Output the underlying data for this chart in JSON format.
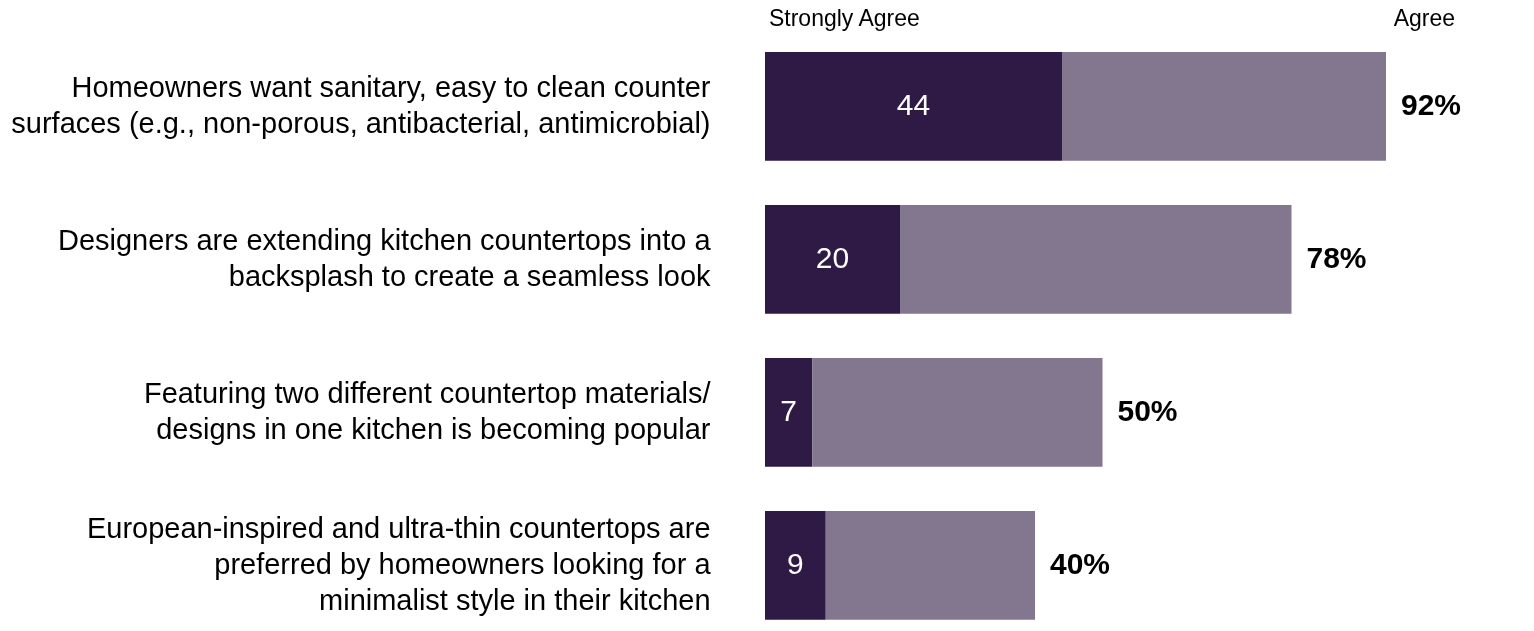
{
  "chart_data": {
    "type": "bar",
    "orientation": "horizontal",
    "stacked": true,
    "categories": [
      "Homeowners want sanitary, easy to clean counter\nsurfaces (e.g., non-porous, antibacterial, antimicrobial)",
      "Designers are extending kitchen countertops into a\nbacksplash to create a seamless look",
      "Featuring two different countertop materials/\ndesigns in one kitchen is becoming popular",
      "European-inspired and ultra-thin countertops are\npreferred by homeowners looking for a\nminimalist style in their kitchen"
    ],
    "series": [
      {
        "name": "Strongly Agree",
        "color": "#2f1a45",
        "values": [
          44,
          20,
          7,
          9
        ],
        "value_labels": [
          "44",
          "20",
          "7",
          "9"
        ]
      },
      {
        "name": "Agree",
        "color": "#83768f",
        "values": [
          48,
          58,
          43,
          31
        ]
      }
    ],
    "totals": [
      "92%",
      "78%",
      "50%",
      "40%"
    ],
    "tick_labels": "y"
  }
}
